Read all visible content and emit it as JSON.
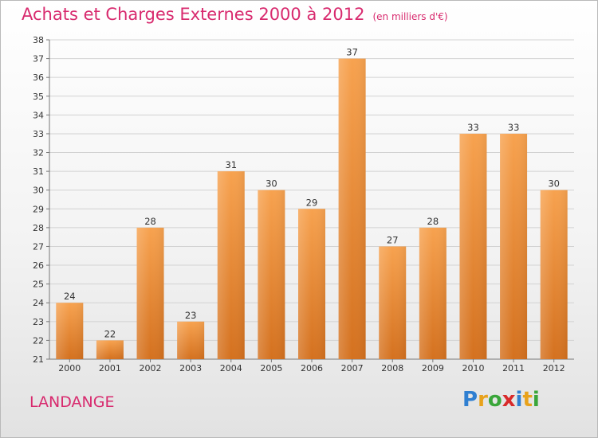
{
  "title": "Achats et Charges Externes 2000 à 2012",
  "unit": "(en milliers d'€)",
  "commune": "LANDANGE",
  "logo": {
    "letters": [
      "P",
      "r",
      "o",
      "x",
      "i",
      "t",
      "i"
    ],
    "colors": [
      "#2f7fd1",
      "#e8a21c",
      "#3aa63a",
      "#d82a2a",
      "#2f7fd1",
      "#e8a21c",
      "#3aa63a"
    ]
  },
  "colors": {
    "bar_top": "#f7a24f",
    "bar_bottom": "#d4711f",
    "accent": "#d82a6e"
  },
  "chart_data": {
    "type": "bar",
    "categories": [
      "2000",
      "2001",
      "2002",
      "2003",
      "2004",
      "2005",
      "2006",
      "2007",
      "2008",
      "2009",
      "2010",
      "2011",
      "2012"
    ],
    "values": [
      24,
      22,
      28,
      23,
      31,
      30,
      29,
      37,
      27,
      28,
      33,
      33,
      30
    ],
    "title": "Achats et Charges Externes 2000 à 2012",
    "ylim": [
      21,
      38
    ],
    "yticks": [
      21,
      22,
      23,
      24,
      25,
      26,
      27,
      28,
      29,
      30,
      31,
      32,
      33,
      34,
      35,
      36,
      37,
      38
    ],
    "grid": true,
    "data_labels": true
  }
}
